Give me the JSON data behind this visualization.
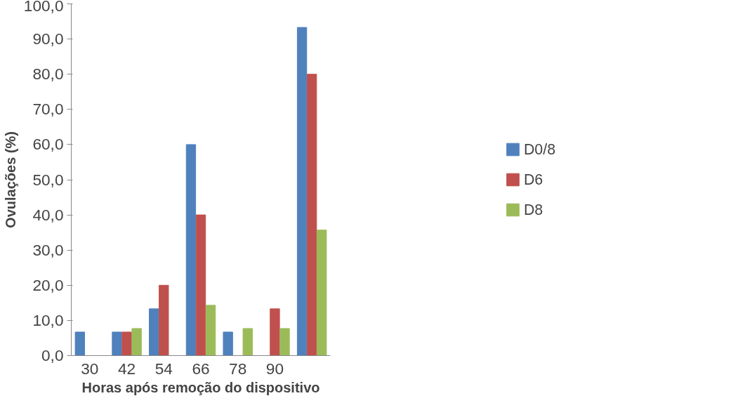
{
  "chart_data": {
    "type": "bar",
    "xlabel": "Horas após remoção do dispositivo",
    "ylabel": "Ovulações (%)",
    "categories": [
      "30",
      "42",
      "54",
      "66",
      "78",
      "90",
      null
    ],
    "series": [
      {
        "name": "D0/8",
        "color": "#4f81bd",
        "values": [
          6.7,
          6.7,
          13.3,
          60.0,
          6.7,
          0,
          93.3
        ]
      },
      {
        "name": "D6",
        "color": "#c0504d",
        "values": [
          0,
          6.7,
          20.0,
          40.0,
          0,
          13.3,
          80.0
        ]
      },
      {
        "name": "D8",
        "color": "#9bbb59",
        "values": [
          0,
          7.7,
          0,
          14.3,
          7.7,
          7.7,
          35.7
        ]
      }
    ],
    "ylim": [
      0,
      100
    ],
    "yticks": [
      {
        "value": 0,
        "label": "0,0"
      },
      {
        "value": 10,
        "label": "10,0"
      },
      {
        "value": 20,
        "label": "20,0"
      },
      {
        "value": 30,
        "label": "30,0"
      },
      {
        "value": 40,
        "label": "40,0"
      },
      {
        "value": 50,
        "label": "50,0"
      },
      {
        "value": 60,
        "label": "60,0"
      },
      {
        "value": 70,
        "label": "70,0"
      },
      {
        "value": 80,
        "label": "80,0"
      },
      {
        "value": 90,
        "label": "90,0"
      },
      {
        "value": 100,
        "label": "100,0"
      }
    ],
    "grid": false,
    "legend": "right"
  }
}
